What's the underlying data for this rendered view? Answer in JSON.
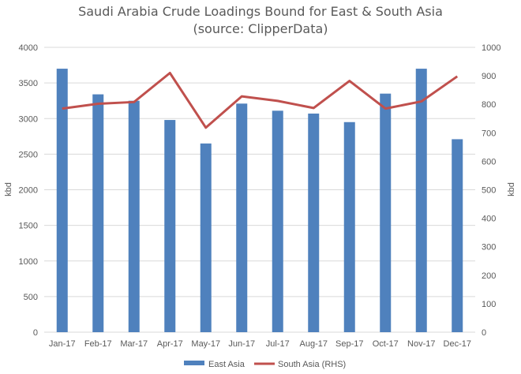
{
  "chart_data": {
    "type": "bar",
    "title": "Saudi Arabia Crude Loadings Bound for East & South Asia",
    "subtitle": "(source: ClipperData)",
    "categories": [
      "Jan-17",
      "Feb-17",
      "Mar-17",
      "Apr-17",
      "May-17",
      "Jun-17",
      "Jul-17",
      "Aug-17",
      "Sep-17",
      "Oct-17",
      "Nov-17",
      "Dec-17"
    ],
    "series": [
      {
        "name": "East Asia",
        "type": "bar",
        "axis": "left",
        "color": "#4f81bd",
        "values": [
          3700,
          3340,
          3250,
          2980,
          2650,
          3210,
          3110,
          3070,
          2950,
          3350,
          3700,
          2710
        ]
      },
      {
        "name": "South Asia (RHS)",
        "type": "line",
        "axis": "right",
        "color": "#c0504d",
        "values": [
          785,
          802,
          808,
          910,
          718,
          828,
          812,
          787,
          882,
          785,
          810,
          898
        ]
      }
    ],
    "ylabel_left": "kbd",
    "ylabel_right": "kbd",
    "ylim_left": [
      0,
      4000
    ],
    "ylim_right": [
      0,
      1000
    ],
    "yticks_left": [
      "0",
      "500",
      "1000",
      "1500",
      "2000",
      "2500",
      "3000",
      "3500",
      "4000"
    ],
    "yticks_right": [
      "0",
      "100",
      "200",
      "300",
      "400",
      "500",
      "600",
      "700",
      "800",
      "900",
      "1000"
    ],
    "grid": true,
    "legend_position": "bottom"
  }
}
